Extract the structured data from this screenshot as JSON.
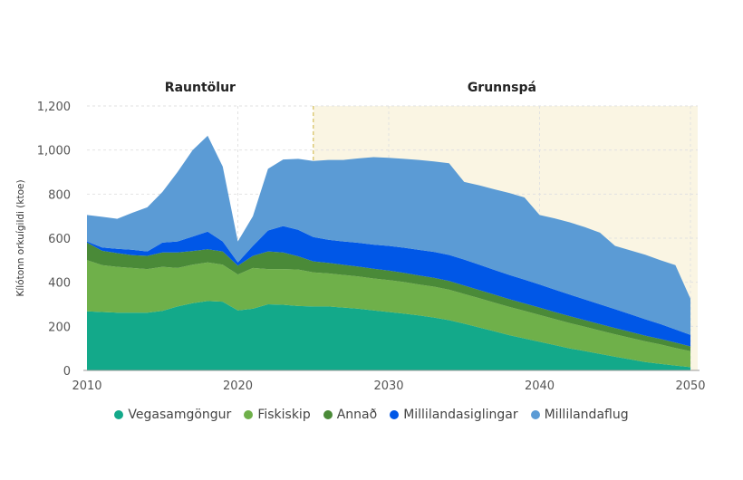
{
  "chart_data": {
    "type": "area",
    "stacked": true,
    "ylabel": "Kílótonn orkuígildi (ktoe)",
    "xlabel": "",
    "ylim": [
      0,
      1200
    ],
    "xlim": [
      2010,
      2050
    ],
    "yticks": [
      "0",
      "200",
      "400",
      "600",
      "800",
      "1,000",
      "1,200"
    ],
    "ytick_values": [
      0,
      200,
      400,
      600,
      800,
      1000,
      1200
    ],
    "xticks": [
      "2010",
      "2020",
      "2030",
      "2040",
      "2050"
    ],
    "xtick_values": [
      2010,
      2020,
      2030,
      2040,
      2050
    ],
    "grid": true,
    "legend_position": "bottom",
    "sections": [
      {
        "label": "Rauntölur",
        "from": 2010,
        "to": 2025,
        "shaded": false
      },
      {
        "label": "Grunnspá",
        "from": 2025,
        "to": 2050,
        "shaded": true,
        "color": "#faf5e3",
        "divider_color": "#d9c46a"
      }
    ],
    "x": [
      2010,
      2011,
      2012,
      2013,
      2014,
      2015,
      2016,
      2017,
      2018,
      2019,
      2020,
      2021,
      2022,
      2023,
      2024,
      2025,
      2026,
      2027,
      2028,
      2029,
      2030,
      2031,
      2032,
      2033,
      2034,
      2035,
      2036,
      2037,
      2038,
      2039,
      2040,
      2041,
      2042,
      2043,
      2044,
      2045,
      2046,
      2047,
      2048,
      2049,
      2050
    ],
    "series": [
      {
        "name": "Vegasamgöngur",
        "color": "#13a98a",
        "values": [
          268,
          265,
          262,
          262,
          262,
          270,
          290,
          305,
          315,
          312,
          272,
          280,
          300,
          298,
          292,
          290,
          290,
          285,
          280,
          272,
          265,
          258,
          250,
          240,
          228,
          212,
          195,
          178,
          160,
          145,
          130,
          115,
          100,
          88,
          75,
          62,
          50,
          38,
          30,
          22,
          15
        ]
      },
      {
        "name": "Fiskiskip",
        "color": "#6fb04a",
        "values": [
          232,
          213,
          208,
          203,
          198,
          200,
          175,
          175,
          175,
          168,
          163,
          185,
          160,
          162,
          166,
          155,
          150,
          148,
          146,
          145,
          145,
          143,
          140,
          140,
          138,
          135,
          133,
          130,
          128,
          125,
          122,
          118,
          115,
          110,
          106,
          102,
          98,
          94,
          88,
          80,
          72
        ]
      },
      {
        "name": "Annað",
        "color": "#4a8a38",
        "values": [
          80,
          65,
          62,
          58,
          60,
          65,
          70,
          62,
          60,
          60,
          40,
          55,
          80,
          75,
          60,
          50,
          48,
          46,
          45,
          44,
          43,
          42,
          41,
          40,
          40,
          38,
          37,
          36,
          35,
          34,
          33,
          32,
          31,
          30,
          29,
          28,
          27,
          26,
          25,
          24,
          22
        ]
      },
      {
        "name": "Millilandasiglingar",
        "color": "#0057e7",
        "values": [
          5,
          15,
          20,
          25,
          20,
          45,
          50,
          65,
          80,
          45,
          15,
          45,
          95,
          120,
          120,
          110,
          105,
          106,
          108,
          110,
          112,
          114,
          116,
          118,
          118,
          118,
          115,
          112,
          110,
          108,
          105,
          102,
          98,
          94,
          90,
          86,
          80,
          74,
          68,
          60,
          52
        ]
      },
      {
        "name": "Millilandaflug",
        "color": "#5b9bd5",
        "values": [
          120,
          139,
          136,
          167,
          200,
          230,
          315,
          393,
          435,
          340,
          95,
          135,
          280,
          302,
          322,
          345,
          362,
          370,
          383,
          397,
          400,
          403,
          408,
          410,
          416,
          352,
          360,
          366,
          372,
          373,
          315,
          323,
          328,
          328,
          325,
          287,
          290,
          293,
          289,
          292,
          164
        ]
      }
    ]
  }
}
